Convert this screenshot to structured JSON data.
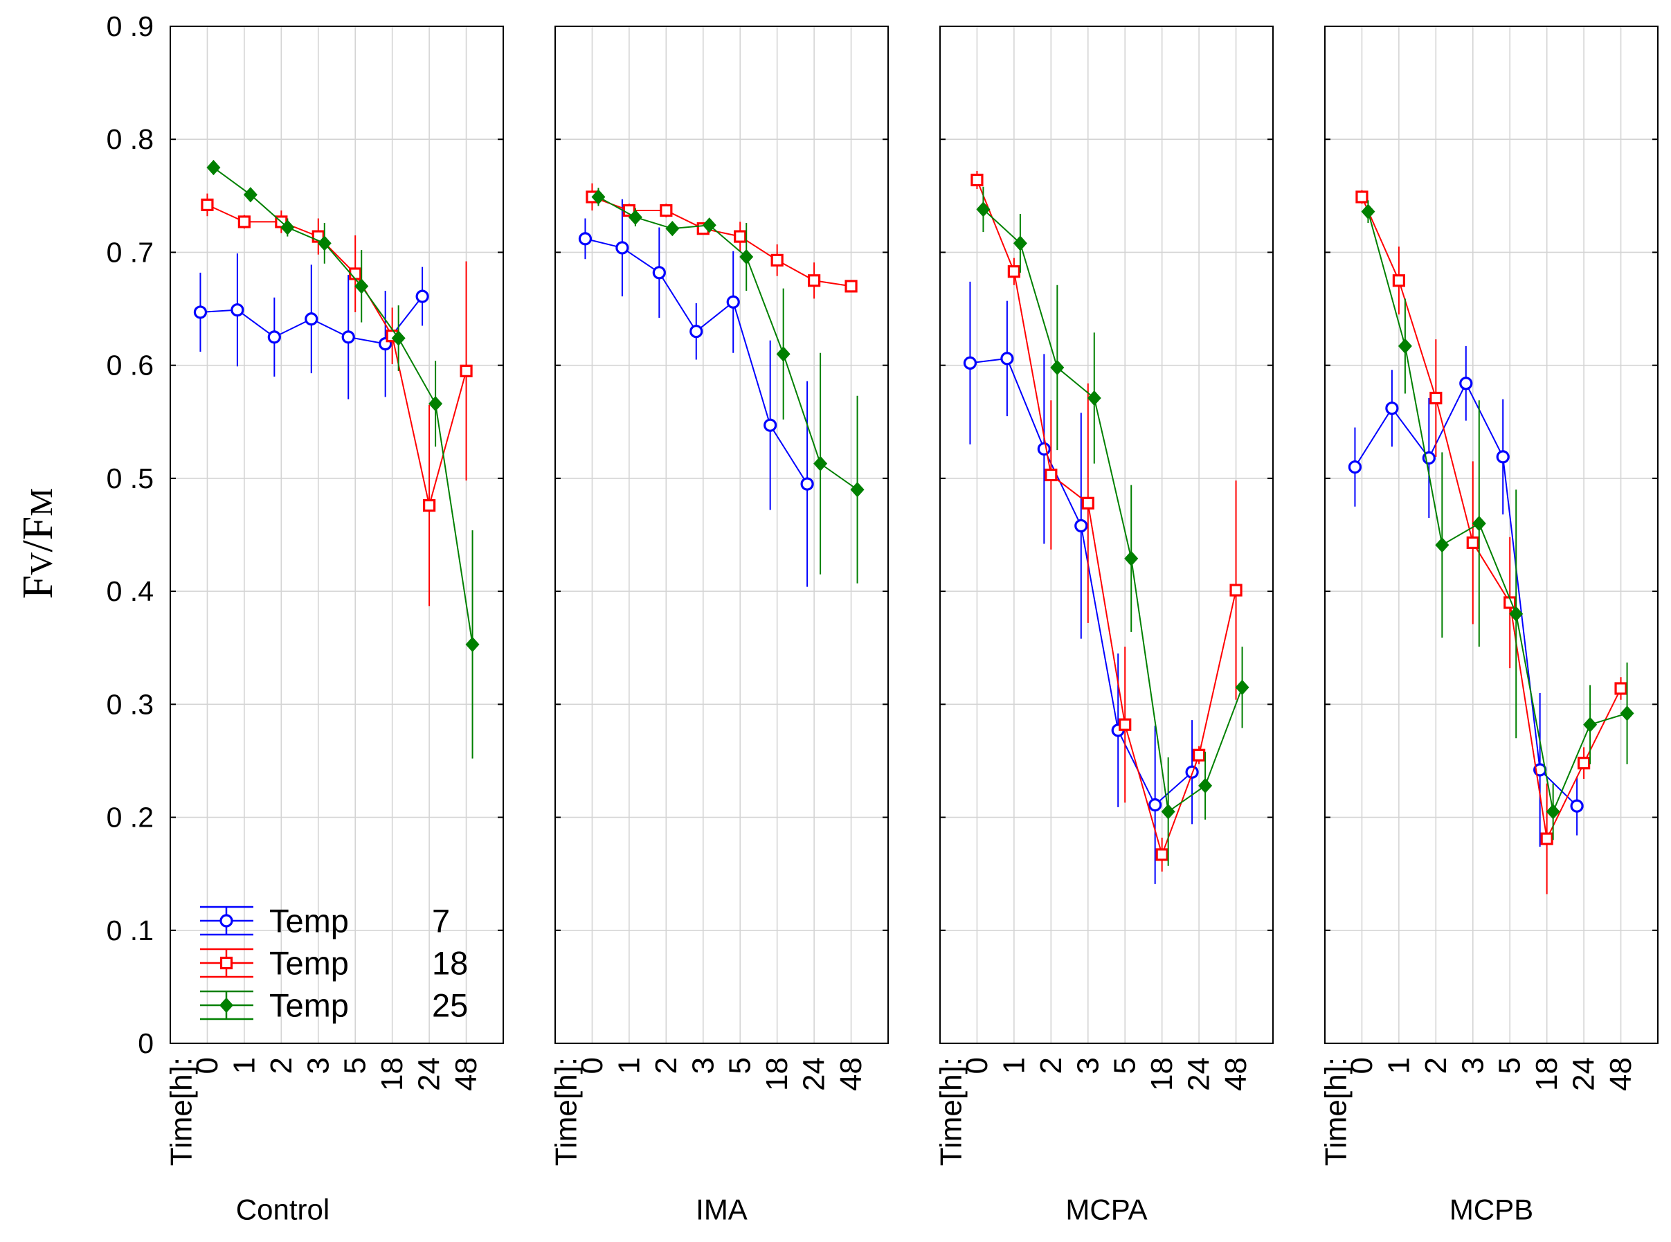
{
  "chart_data": {
    "type": "line",
    "title": "",
    "xlabel": "",
    "ylabel": [
      {
        "text": "F"
      },
      {
        "text": "V",
        "small": true
      },
      {
        "text": "/F"
      },
      {
        "text": "M",
        "small": true
      }
    ],
    "ylim": [
      0,
      0.9
    ],
    "yticks": [
      {
        "value": 0,
        "label": "0"
      },
      {
        "value": 0.1,
        "label": "0 .1"
      },
      {
        "value": 0.2,
        "label": "0 .2"
      },
      {
        "value": 0.3,
        "label": "0 .3"
      },
      {
        "value": 0.4,
        "label": "0 .4"
      },
      {
        "value": 0.5,
        "label": "0 .5"
      },
      {
        "value": 0.6,
        "label": "0 .6"
      },
      {
        "value": 0.7,
        "label": "0 .7"
      },
      {
        "value": 0.8,
        "label": "0 .8"
      },
      {
        "value": 0.9,
        "label": "0 .9"
      }
    ],
    "x_label": "Time[h]:",
    "categories": [
      "0",
      "1",
      "2",
      "3",
      "5",
      "18",
      "24",
      "48"
    ],
    "legend": [
      {
        "label": "Temp",
        "value": "7",
        "color": "#0000ff",
        "marker": "circle"
      },
      {
        "label": "Temp",
        "value": "18",
        "color": "#ff0000",
        "marker": "square"
      },
      {
        "label": "Temp",
        "value": "25",
        "color": "#008000",
        "marker": "diamond"
      }
    ],
    "panels": [
      {
        "name": "Control",
        "series": [
          {
            "values": [
              0.647,
              0.649,
              0.625,
              0.641,
              0.625,
              0.619,
              0.661,
              null
            ],
            "errors": [
              0.035,
              0.05,
              0.035,
              0.048,
              0.055,
              0.047,
              0.026,
              null
            ]
          },
          {
            "values": [
              0.742,
              0.727,
              0.727,
              0.714,
              0.681,
              0.626,
              0.476,
              0.595
            ],
            "errors": [
              0.01,
              0.006,
              0.01,
              0.016,
              0.034,
              0.025,
              0.089,
              0.097
            ]
          },
          {
            "values": [
              0.775,
              0.751,
              0.722,
              0.708,
              0.67,
              0.624,
              0.566,
              0.353
            ],
            "errors": [
              0.004,
              0.005,
              0.008,
              0.018,
              0.032,
              0.029,
              0.038,
              0.101
            ]
          }
        ]
      },
      {
        "name": "IMA",
        "series": [
          {
            "values": [
              0.712,
              0.704,
              0.682,
              0.63,
              0.656,
              0.547,
              0.495,
              null
            ],
            "errors": [
              0.018,
              0.043,
              0.04,
              0.025,
              0.045,
              0.075,
              0.091,
              null
            ]
          },
          {
            "values": [
              0.749,
              0.737,
              0.737,
              0.721,
              0.714,
              0.693,
              0.675,
              0.67
            ],
            "errors": [
              0.012,
              0.006,
              0.006,
              0.005,
              0.013,
              0.014,
              0.016,
              0.004
            ]
          },
          {
            "values": [
              0.749,
              0.731,
              0.721,
              0.724,
              0.696,
              0.61,
              0.513,
              0.49
            ],
            "errors": [
              0.008,
              0.008,
              0.006,
              0.006,
              0.03,
              0.058,
              0.098,
              0.083
            ]
          }
        ]
      },
      {
        "name": "MCPA",
        "series": [
          {
            "values": [
              0.602,
              0.606,
              0.526,
              0.458,
              0.277,
              0.211,
              0.24,
              null
            ],
            "errors": [
              0.072,
              0.051,
              0.084,
              0.1,
              0.068,
              0.07,
              0.046,
              null
            ]
          },
          {
            "values": [
              0.764,
              0.683,
              0.503,
              0.478,
              0.282,
              0.167,
              0.255,
              0.401
            ],
            "errors": [
              0.008,
              0.012,
              0.066,
              0.106,
              0.069,
              0.015,
              0.008,
              0.097
            ]
          },
          {
            "values": [
              0.738,
              0.708,
              0.598,
              0.571,
              0.429,
              0.205,
              0.228,
              0.315
            ],
            "errors": [
              0.02,
              0.026,
              0.073,
              0.058,
              0.065,
              0.048,
              0.03,
              0.036
            ]
          }
        ]
      },
      {
        "name": "MCPB",
        "series": [
          {
            "values": [
              0.51,
              0.562,
              0.518,
              0.584,
              0.519,
              0.242,
              0.21,
              null
            ],
            "errors": [
              0.035,
              0.034,
              0.053,
              0.033,
              0.051,
              0.068,
              0.026,
              null
            ]
          },
          {
            "values": [
              0.749,
              0.675,
              0.571,
              0.443,
              0.39,
              0.181,
              0.248,
              0.314
            ],
            "errors": [
              0.006,
              0.03,
              0.052,
              0.072,
              0.058,
              0.049,
              0.014,
              0.01
            ]
          },
          {
            "values": [
              0.736,
              0.617,
              0.441,
              0.46,
              0.38,
              0.205,
              0.282,
              0.292
            ],
            "errors": [
              0.01,
              0.042,
              0.082,
              0.109,
              0.11,
              0.025,
              0.035,
              0.045
            ]
          }
        ]
      }
    ]
  }
}
